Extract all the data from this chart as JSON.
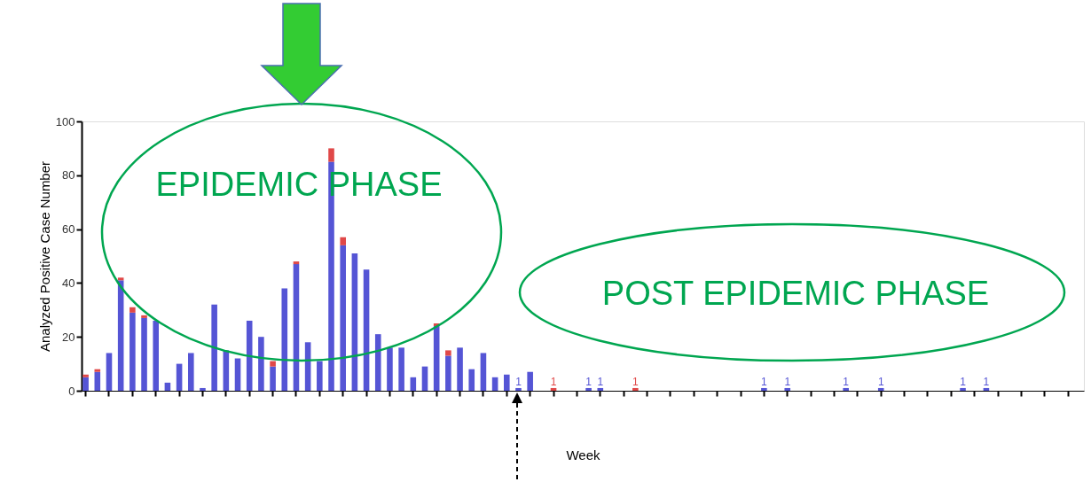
{
  "chart_data": {
    "type": "bar",
    "stacked": true,
    "xlabel": "Week",
    "ylabel": "Analyzed Positive Case Number",
    "ylim": [
      0,
      100
    ],
    "yticks": [
      0,
      20,
      40,
      60,
      80,
      100
    ],
    "grid": false,
    "legend": false,
    "tick_labels": "y",
    "categories": [
      null,
      null,
      null,
      null,
      null,
      null,
      null,
      null,
      null,
      null,
      null,
      null,
      null,
      null,
      null,
      null,
      null,
      null,
      null,
      null,
      null,
      null,
      null,
      null,
      null,
      null,
      null,
      null,
      null,
      null,
      null,
      null,
      null,
      null,
      null,
      null,
      null,
      null,
      null,
      null,
      null,
      null,
      null,
      null,
      null,
      null,
      null,
      null,
      null,
      null,
      null,
      null,
      null,
      null,
      null,
      null,
      null,
      null,
      null,
      null,
      null,
      null,
      null,
      null,
      null,
      null,
      null,
      null,
      null,
      null,
      null,
      null,
      null,
      null,
      null,
      null,
      null,
      null,
      null,
      null,
      null,
      null,
      null,
      null,
      null,
      null
    ],
    "series": [
      {
        "color": "#5555d5",
        "values": [
          5,
          7,
          14,
          41,
          29,
          27,
          26,
          3,
          10,
          14,
          1,
          32,
          15,
          12,
          26,
          20,
          9,
          38,
          47,
          18,
          11,
          85,
          54,
          51,
          45,
          21,
          16,
          16,
          5,
          9,
          24,
          13,
          16,
          8,
          14,
          5,
          6,
          1,
          7,
          null,
          null,
          null,
          null,
          1,
          1,
          null,
          null,
          null,
          null,
          null,
          null,
          null,
          null,
          null,
          null,
          null,
          null,
          null,
          1,
          null,
          1,
          null,
          null,
          null,
          null,
          1,
          null,
          null,
          1,
          null,
          null,
          null,
          null,
          null,
          null,
          1,
          null,
          1,
          null,
          null,
          null,
          null,
          null,
          null,
          null,
          null
        ],
        "value_labels": [
          null,
          null,
          null,
          null,
          null,
          null,
          null,
          null,
          null,
          null,
          null,
          null,
          null,
          null,
          null,
          null,
          null,
          null,
          null,
          null,
          null,
          null,
          null,
          null,
          null,
          null,
          null,
          null,
          null,
          null,
          null,
          null,
          null,
          null,
          null,
          null,
          null,
          "1",
          null,
          null,
          null,
          null,
          null,
          "1",
          "1",
          null,
          null,
          null,
          null,
          null,
          null,
          null,
          null,
          null,
          null,
          null,
          null,
          null,
          "1",
          null,
          "1",
          null,
          null,
          null,
          null,
          "1",
          null,
          null,
          "1",
          null,
          null,
          null,
          null,
          null,
          null,
          "1",
          null,
          "1",
          null,
          null,
          null,
          null,
          null,
          null,
          null,
          null
        ]
      },
      {
        "color": "#e04848",
        "values": [
          1,
          1,
          null,
          1,
          2,
          1,
          null,
          null,
          null,
          null,
          null,
          null,
          null,
          null,
          null,
          null,
          2,
          null,
          1,
          null,
          null,
          5,
          3,
          null,
          null,
          null,
          null,
          null,
          null,
          null,
          1,
          2,
          null,
          null,
          null,
          null,
          null,
          null,
          null,
          null,
          1,
          null,
          null,
          null,
          null,
          null,
          null,
          1,
          null,
          null,
          null,
          null,
          null,
          null,
          null,
          null,
          null,
          null,
          null,
          null,
          null,
          null,
          null,
          null,
          null,
          null,
          null,
          null,
          null,
          null,
          null,
          null,
          null,
          null,
          null,
          null,
          null,
          null,
          null,
          null,
          null,
          null,
          null,
          null,
          null,
          null
        ],
        "value_labels": [
          null,
          null,
          null,
          null,
          null,
          null,
          null,
          null,
          null,
          null,
          null,
          null,
          null,
          null,
          null,
          null,
          null,
          null,
          null,
          null,
          null,
          null,
          null,
          null,
          null,
          null,
          null,
          null,
          null,
          null,
          null,
          null,
          null,
          null,
          null,
          null,
          null,
          null,
          null,
          null,
          "1",
          null,
          null,
          null,
          null,
          null,
          null,
          "1",
          null,
          null,
          null,
          null,
          null,
          null,
          null,
          null,
          null,
          null,
          null,
          null,
          null,
          null,
          null,
          null,
          null,
          null,
          null,
          null,
          null,
          null,
          null,
          null,
          null,
          null,
          null,
          null,
          null,
          null,
          null,
          null,
          null,
          null,
          null,
          null,
          null,
          null
        ]
      }
    ],
    "annotations": [
      "EPIDEMIC PHASE",
      "POST EPIDEMIC PHASE"
    ]
  }
}
